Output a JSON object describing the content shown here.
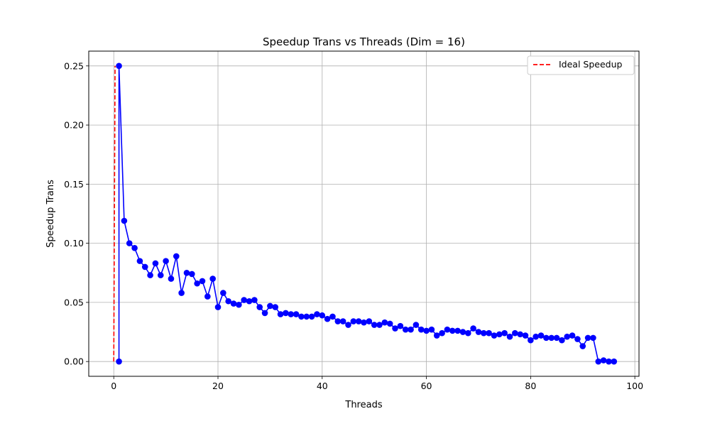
{
  "chart_data": {
    "type": "line",
    "title": "Speedup Trans vs Threads (Dim = 16)",
    "xlabel": "Threads",
    "ylabel": "Speedup Trans",
    "xlim": [
      -4.8,
      100.8
    ],
    "ylim": [
      -0.0125,
      0.2625
    ],
    "xticks": [
      0,
      20,
      40,
      60,
      80,
      100
    ],
    "yticks": [
      0.0,
      0.05,
      0.1,
      0.15,
      0.2,
      0.25
    ],
    "ytick_labels": [
      "0.00",
      "0.05",
      "0.10",
      "0.15",
      "0.20",
      "0.25"
    ],
    "grid": true,
    "legend_position": "top-right",
    "series": [
      {
        "name": "",
        "color": "#0000ff",
        "style": "solid",
        "marker": "circle",
        "x": [
          1,
          1,
          2,
          3,
          4,
          5,
          6,
          7,
          8,
          9,
          10,
          11,
          12,
          13,
          14,
          15,
          16,
          17,
          18,
          19,
          20,
          21,
          22,
          23,
          24,
          25,
          26,
          27,
          28,
          29,
          30,
          31,
          32,
          33,
          34,
          35,
          36,
          37,
          38,
          39,
          40,
          41,
          42,
          43,
          44,
          45,
          46,
          47,
          48,
          49,
          50,
          51,
          52,
          53,
          54,
          55,
          56,
          57,
          58,
          59,
          60,
          61,
          62,
          63,
          64,
          65,
          66,
          67,
          68,
          69,
          70,
          71,
          72,
          73,
          74,
          75,
          76,
          77,
          78,
          79,
          80,
          81,
          82,
          83,
          84,
          85,
          86,
          87,
          88,
          89,
          90,
          91,
          92,
          93,
          94,
          95,
          96
        ],
        "y": [
          0.0,
          0.25,
          0.119,
          0.1,
          0.096,
          0.085,
          0.08,
          0.073,
          0.083,
          0.073,
          0.085,
          0.07,
          0.089,
          0.058,
          0.075,
          0.074,
          0.066,
          0.068,
          0.055,
          0.07,
          0.046,
          0.058,
          0.051,
          0.049,
          0.048,
          0.052,
          0.051,
          0.052,
          0.046,
          0.041,
          0.047,
          0.046,
          0.04,
          0.041,
          0.04,
          0.04,
          0.038,
          0.038,
          0.038,
          0.04,
          0.039,
          0.036,
          0.038,
          0.034,
          0.034,
          0.031,
          0.034,
          0.034,
          0.033,
          0.034,
          0.031,
          0.031,
          0.033,
          0.032,
          0.028,
          0.03,
          0.027,
          0.027,
          0.031,
          0.027,
          0.026,
          0.027,
          0.022,
          0.024,
          0.027,
          0.026,
          0.026,
          0.025,
          0.024,
          0.028,
          0.025,
          0.024,
          0.024,
          0.022,
          0.023,
          0.024,
          0.021,
          0.024,
          0.023,
          0.022,
          0.018,
          0.021,
          0.022,
          0.02,
          0.02,
          0.02,
          0.018,
          0.021,
          0.022,
          0.019,
          0.013,
          0.02,
          0.02,
          0.0,
          0.001,
          0.0,
          0.0
        ]
      },
      {
        "name": "Ideal Speedup",
        "color": "#ff0000",
        "style": "dashed",
        "marker": "none",
        "x": [
          0,
          0.25
        ],
        "y": [
          0.0,
          0.25
        ]
      }
    ]
  }
}
